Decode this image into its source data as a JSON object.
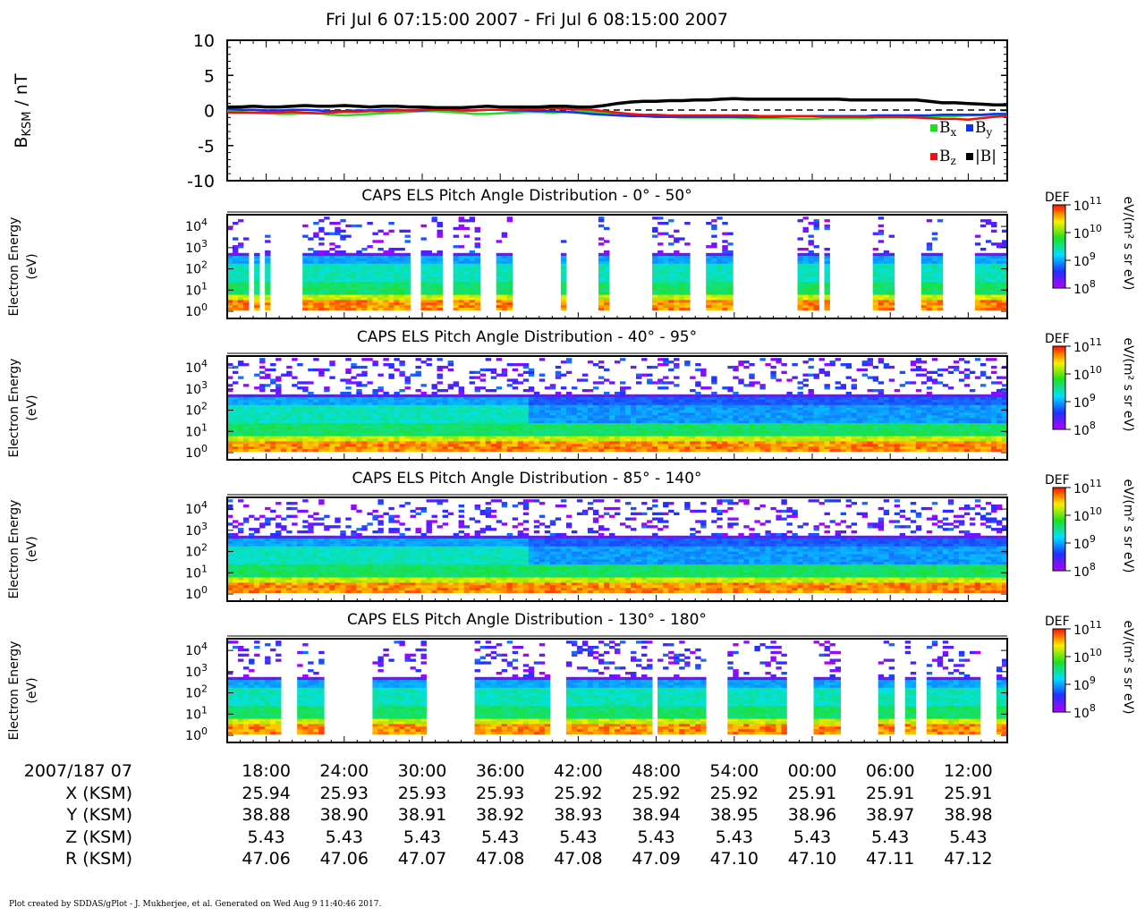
{
  "title": "Fri Jul 6 07:15:00 2007 - Fri Jul 6 08:15:00 2007",
  "footer": "Plot created by SDDAS/gPlot - J. Mukherjee, et al.  Generated on Wed Aug 9 11:40:46 2017.",
  "colors": {
    "bx": "#22dd22",
    "by": "#1133ee",
    "bz": "#ee1111",
    "bmag": "#000000"
  },
  "chart_data": [
    {
      "type": "line",
      "title": "Fri Jul 6 07:15:00 2007 - Fri Jul 6 08:15:00 2007",
      "ylabel": "B_KSM / nT",
      "ylabel_main": "B",
      "ylabel_sub": "KSM",
      "ylabel_unit": " / nT",
      "ylim": [
        -10,
        10
      ],
      "yticks": [
        "10",
        "5",
        "0",
        "-5",
        "-10"
      ],
      "ytick_values": [
        10,
        5,
        0,
        -5,
        -10
      ],
      "xlim": [
        15,
        75
      ],
      "x": [
        15,
        16,
        17,
        18,
        19,
        20,
        21,
        22,
        23,
        24,
        25,
        26,
        27,
        28,
        29,
        30,
        31,
        32,
        33,
        34,
        35,
        36,
        37,
        38,
        39,
        40,
        41,
        42,
        43,
        44,
        45,
        46,
        47,
        48,
        49,
        50,
        51,
        52,
        53,
        54,
        55,
        56,
        57,
        58,
        59,
        60,
        61,
        62,
        63,
        64,
        65,
        66,
        67,
        68,
        69,
        70,
        71,
        72,
        73,
        74,
        75
      ],
      "legend": [
        {
          "key": "bx",
          "label": "B",
          "sub": "x"
        },
        {
          "key": "by",
          "label": "B",
          "sub": "y"
        },
        {
          "key": "bz",
          "label": "B",
          "sub": "z"
        },
        {
          "key": "bmag",
          "label": "|B|",
          "sub": ""
        }
      ],
      "series": [
        {
          "key": "bx",
          "values": [
            0.0,
            -0.2,
            -0.3,
            -0.4,
            -0.5,
            -0.5,
            -0.4,
            -0.4,
            -0.6,
            -0.7,
            -0.6,
            -0.5,
            -0.4,
            -0.3,
            -0.2,
            -0.1,
            -0.1,
            -0.2,
            -0.3,
            -0.5,
            -0.5,
            -0.4,
            -0.3,
            -0.2,
            -0.2,
            -0.3,
            -0.2,
            -0.1,
            -0.2,
            -0.3,
            -0.4,
            -0.6,
            -0.8,
            -0.9,
            -0.9,
            -1.0,
            -1.0,
            -1.0,
            -1.0,
            -1.0,
            -1.1,
            -1.1,
            -1.1,
            -1.1,
            -1.2,
            -1.2,
            -1.1,
            -1.1,
            -1.1,
            -1.1,
            -1.0,
            -1.0,
            -1.0,
            -1.0,
            -0.9,
            -0.8,
            -0.8,
            -0.7,
            -0.7,
            -0.6,
            -0.6
          ]
        },
        {
          "key": "by",
          "values": [
            0.2,
            0.1,
            0.1,
            0.0,
            0.0,
            0.1,
            0.1,
            0.0,
            -0.1,
            -0.1,
            0.0,
            0.0,
            0.1,
            0.1,
            0.0,
            0.0,
            0.1,
            0.1,
            0.0,
            0.0,
            0.1,
            0.1,
            0.0,
            0.0,
            -0.1,
            -0.1,
            -0.2,
            -0.3,
            -0.5,
            -0.6,
            -0.7,
            -0.8,
            -0.8,
            -0.9,
            -0.9,
            -0.9,
            -0.9,
            -0.9,
            -0.9,
            -0.9,
            -0.9,
            -0.9,
            -0.9,
            -0.8,
            -0.8,
            -0.8,
            -0.8,
            -0.8,
            -0.8,
            -0.8,
            -0.7,
            -0.7,
            -0.7,
            -0.7,
            -0.7,
            -0.6,
            -0.6,
            -0.6,
            -0.6,
            -0.5,
            -0.5
          ]
        },
        {
          "key": "bz",
          "values": [
            -0.3,
            -0.3,
            -0.3,
            -0.3,
            -0.3,
            -0.2,
            -0.3,
            -0.4,
            -0.3,
            -0.2,
            -0.2,
            -0.1,
            -0.1,
            0.0,
            0.0,
            0.1,
            0.1,
            0.1,
            0.0,
            0.0,
            0.1,
            0.1,
            0.1,
            0.2,
            0.2,
            0.3,
            0.2,
            0.2,
            0.1,
            -0.1,
            -0.3,
            -0.5,
            -0.6,
            -0.6,
            -0.7,
            -0.7,
            -0.7,
            -0.7,
            -0.7,
            -0.7,
            -0.7,
            -0.8,
            -0.8,
            -0.8,
            -0.8,
            -0.8,
            -0.9,
            -0.9,
            -0.9,
            -0.9,
            -0.9,
            -0.9,
            -0.9,
            -1.0,
            -1.1,
            -1.2,
            -1.2,
            -1.3,
            -1.1,
            -0.9,
            -0.8
          ]
        },
        {
          "key": "bmag",
          "values": [
            0.5,
            0.5,
            0.6,
            0.5,
            0.5,
            0.6,
            0.7,
            0.6,
            0.6,
            0.7,
            0.6,
            0.5,
            0.6,
            0.6,
            0.5,
            0.5,
            0.4,
            0.4,
            0.4,
            0.5,
            0.6,
            0.5,
            0.5,
            0.5,
            0.5,
            0.6,
            0.6,
            0.5,
            0.5,
            0.7,
            1.0,
            1.2,
            1.3,
            1.3,
            1.4,
            1.4,
            1.5,
            1.5,
            1.6,
            1.7,
            1.6,
            1.6,
            1.6,
            1.6,
            1.6,
            1.6,
            1.6,
            1.6,
            1.5,
            1.5,
            1.5,
            1.5,
            1.5,
            1.5,
            1.3,
            1.1,
            1.1,
            1.0,
            0.9,
            0.8,
            0.8
          ]
        }
      ]
    },
    {
      "type": "heatmap",
      "title": "CAPS ELS Pitch Angle Distribution - 0° - 50°",
      "ylabel": "Electron Energy (eV)",
      "yticks": [
        "10",
        "10",
        "10",
        "10",
        "10"
      ],
      "ytick_exponents": [
        "4",
        "3",
        "2",
        "1",
        "0"
      ],
      "colorbar": {
        "label": "DEF",
        "unit": "eV/(m² s sr eV)",
        "ticks": [
          "10",
          "10",
          "10",
          "10"
        ],
        "exponents": [
          "11",
          "10",
          "9",
          "8"
        ]
      },
      "data_gaps": [
        [
          16.5,
          17.0
        ],
        [
          17.5,
          18.0
        ],
        [
          18.5,
          21.0
        ],
        [
          29.0,
          30.0
        ],
        [
          31.5,
          32.5
        ],
        [
          34.5,
          35.5
        ],
        [
          37.0,
          40.5
        ],
        [
          41.0,
          43.5
        ],
        [
          44.5,
          47.5
        ],
        [
          50.5,
          52.0
        ],
        [
          54.0,
          59.0
        ],
        [
          60.5,
          61.0
        ],
        [
          61.5,
          64.5
        ],
        [
          66.5,
          68.5
        ],
        [
          70.0,
          72.5
        ]
      ],
      "gaps_unit": "minutes"
    },
    {
      "type": "heatmap",
      "title": "CAPS ELS Pitch Angle Distribution - 40° - 95°",
      "ylabel": "Electron Energy (eV)",
      "yticks": [
        "10",
        "10",
        "10",
        "10",
        "10"
      ],
      "ytick_exponents": [
        "4",
        "3",
        "2",
        "1",
        "0"
      ],
      "colorbar": {
        "label": "DEF",
        "unit": "eV/(m² s sr eV)",
        "ticks": [
          "10",
          "10",
          "10",
          "10"
        ],
        "exponents": [
          "11",
          "10",
          "9",
          "8"
        ]
      },
      "data_gaps": [],
      "gaps_unit": "minutes"
    },
    {
      "type": "heatmap",
      "title": "CAPS ELS Pitch Angle Distribution - 85° - 140°",
      "ylabel": "Electron Energy (eV)",
      "yticks": [
        "10",
        "10",
        "10",
        "10",
        "10"
      ],
      "ytick_exponents": [
        "4",
        "3",
        "2",
        "1",
        "0"
      ],
      "colorbar": {
        "label": "DEF",
        "unit": "eV/(m² s sr eV)",
        "ticks": [
          "10",
          "10",
          "10",
          "10"
        ],
        "exponents": [
          "11",
          "10",
          "9",
          "8"
        ]
      },
      "data_gaps": [],
      "gaps_unit": "minutes"
    },
    {
      "type": "heatmap",
      "title": "CAPS ELS Pitch Angle Distribution - 130° - 180°",
      "ylabel": "Electron Energy (eV)",
      "yticks": [
        "10",
        "10",
        "10",
        "10",
        "10"
      ],
      "ytick_exponents": [
        "4",
        "3",
        "2",
        "1",
        "0"
      ],
      "colorbar": {
        "label": "DEF",
        "unit": "eV/(m² s sr eV)",
        "ticks": [
          "10",
          "10",
          "10",
          "10"
        ],
        "exponents": [
          "11",
          "10",
          "9",
          "8"
        ]
      },
      "data_gaps": [
        [
          19.0,
          20.5
        ],
        [
          22.5,
          26.0
        ],
        [
          30.5,
          34.0
        ],
        [
          40.0,
          41.0
        ],
        [
          47.5,
          48.0
        ],
        [
          52.0,
          53.5
        ],
        [
          58.0,
          60.0
        ],
        [
          62.0,
          65.0
        ],
        [
          66.5,
          67.0
        ],
        [
          68.0,
          69.0
        ],
        [
          73.0,
          74.0
        ]
      ],
      "gaps_unit": "minutes"
    }
  ],
  "ephemeris": {
    "row_labels": [
      "2007/187 07",
      "X (KSM)",
      "Y (KSM)",
      "Z (KSM)",
      "R (KSM)"
    ],
    "times": [
      "18:00",
      "24:00",
      "30:00",
      "36:00",
      "42:00",
      "48:00",
      "54:00",
      "00:00",
      "06:00",
      "12:00"
    ],
    "X": [
      "25.94",
      "25.93",
      "25.93",
      "25.93",
      "25.92",
      "25.92",
      "25.92",
      "25.91",
      "25.91",
      "25.91"
    ],
    "Y": [
      "38.88",
      "38.90",
      "38.91",
      "38.92",
      "38.93",
      "38.94",
      "38.95",
      "38.96",
      "38.97",
      "38.98"
    ],
    "Z": [
      "5.43",
      "5.43",
      "5.43",
      "5.43",
      "5.43",
      "5.43",
      "5.43",
      "5.43",
      "5.43",
      "5.43"
    ],
    "R": [
      "47.06",
      "47.06",
      "47.07",
      "47.08",
      "47.08",
      "47.09",
      "47.10",
      "47.10",
      "47.11",
      "47.12"
    ]
  }
}
